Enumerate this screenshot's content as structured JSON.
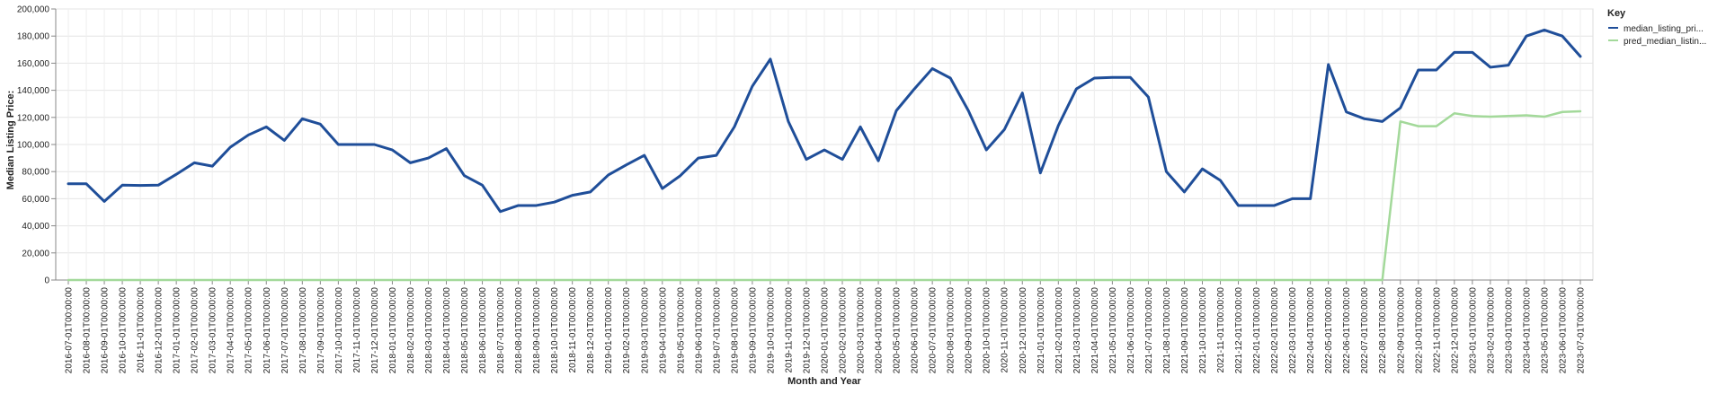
{
  "chart_data": {
    "type": "line",
    "xlabel": "Month and Year",
    "ylabel": "Median Listing Price:",
    "ylim": [
      0,
      200000
    ],
    "yticks": [
      "0",
      "20,000",
      "40,000",
      "60,000",
      "80,000",
      "100,000",
      "120,000",
      "140,000",
      "160,000",
      "180,000",
      "200,000"
    ],
    "grid": true,
    "legend": {
      "title": "Key",
      "position": "top-right"
    },
    "x": [
      "2016-07-01T00:00:00",
      "2016-08-01T00:00:00",
      "2016-09-01T00:00:00",
      "2016-10-01T00:00:00",
      "2016-11-01T00:00:00",
      "2016-12-01T00:00:00",
      "2017-01-01T00:00:00",
      "2017-02-01T00:00:00",
      "2017-03-01T00:00:00",
      "2017-04-01T00:00:00",
      "2017-05-01T00:00:00",
      "2017-06-01T00:00:00",
      "2017-07-01T00:00:00",
      "2017-08-01T00:00:00",
      "2017-09-01T00:00:00",
      "2017-10-01T00:00:00",
      "2017-11-01T00:00:00",
      "2017-12-01T00:00:00",
      "2018-01-01T00:00:00",
      "2018-02-01T00:00:00",
      "2018-03-01T00:00:00",
      "2018-04-01T00:00:00",
      "2018-05-01T00:00:00",
      "2018-06-01T00:00:00",
      "2018-07-01T00:00:00",
      "2018-08-01T00:00:00",
      "2018-09-01T00:00:00",
      "2018-10-01T00:00:00",
      "2018-11-01T00:00:00",
      "2018-12-01T00:00:00",
      "2019-01-01T00:00:00",
      "2019-02-01T00:00:00",
      "2019-03-01T00:00:00",
      "2019-04-01T00:00:00",
      "2019-05-01T00:00:00",
      "2019-06-01T00:00:00",
      "2019-07-01T00:00:00",
      "2019-08-01T00:00:00",
      "2019-09-01T00:00:00",
      "2019-10-01T00:00:00",
      "2019-11-01T00:00:00",
      "2019-12-01T00:00:00",
      "2020-01-01T00:00:00",
      "2020-02-01T00:00:00",
      "2020-03-01T00:00:00",
      "2020-04-01T00:00:00",
      "2020-05-01T00:00:00",
      "2020-06-01T00:00:00",
      "2020-07-01T00:00:00",
      "2020-08-01T00:00:00",
      "2020-09-01T00:00:00",
      "2020-10-01T00:00:00",
      "2020-11-01T00:00:00",
      "2020-12-01T00:00:00",
      "2021-01-01T00:00:00",
      "2021-02-01T00:00:00",
      "2021-03-01T00:00:00",
      "2021-04-01T00:00:00",
      "2021-05-01T00:00:00",
      "2021-06-01T00:00:00",
      "2021-07-01T00:00:00",
      "2021-08-01T00:00:00",
      "2021-09-01T00:00:00",
      "2021-10-01T00:00:00",
      "2021-11-01T00:00:00",
      "2021-12-01T00:00:00",
      "2022-01-01T00:00:00",
      "2022-02-01T00:00:00",
      "2022-03-01T00:00:00",
      "2022-04-01T00:00:00",
      "2022-05-01T00:00:00",
      "2022-06-01T00:00:00",
      "2022-07-01T00:00:00",
      "2022-08-01T00:00:00",
      "2022-09-01T00:00:00",
      "2022-10-01T00:00:00",
      "2022-11-01T00:00:00",
      "2022-12-01T00:00:00",
      "2023-01-01T00:00:00",
      "2023-02-01T00:00:00",
      "2023-03-01T00:00:00",
      "2023-04-01T00:00:00",
      "2023-05-01T00:00:00",
      "2023-06-01T00:00:00",
      "2023-07-01T00:00:00"
    ],
    "series": [
      {
        "name": "median_listing_pri...",
        "color": "#1f4e99",
        "values": [
          71000,
          71000,
          58000,
          70000,
          69800,
          70000,
          78000,
          86500,
          84000,
          98000,
          107000,
          113000,
          103000,
          119000,
          115000,
          100000,
          100000,
          100000,
          96000,
          86500,
          90000,
          97000,
          77000,
          70000,
          50500,
          55000,
          55000,
          57500,
          62500,
          65000,
          77500,
          85000,
          92000,
          67500,
          77000,
          90000,
          92000,
          113000,
          143000,
          163000,
          117000,
          89000,
          96000,
          89000,
          113000,
          88000,
          125000,
          141000,
          156000,
          149000,
          125000,
          96000,
          111000,
          138000,
          79000,
          114000,
          141000,
          149000,
          149500,
          149500,
          135000,
          80000,
          65000,
          82000,
          73500,
          55000,
          55000,
          55000,
          60000,
          60000,
          159000,
          124000,
          119000,
          117000,
          127000,
          155000,
          155000,
          168000,
          168000,
          157000,
          158500,
          180000,
          184500,
          180000,
          165000
        ]
      },
      {
        "name": "pred_median_listin...",
        "color": "#a3d99a",
        "values": [
          0,
          0,
          0,
          0,
          0,
          0,
          0,
          0,
          0,
          0,
          0,
          0,
          0,
          0,
          0,
          0,
          0,
          0,
          0,
          0,
          0,
          0,
          0,
          0,
          0,
          0,
          0,
          0,
          0,
          0,
          0,
          0,
          0,
          0,
          0,
          0,
          0,
          0,
          0,
          0,
          0,
          0,
          0,
          0,
          0,
          0,
          0,
          0,
          0,
          0,
          0,
          0,
          0,
          0,
          0,
          0,
          0,
          0,
          0,
          0,
          0,
          0,
          0,
          0,
          0,
          0,
          0,
          0,
          0,
          0,
          0,
          0,
          0,
          0,
          117000,
          113500,
          113500,
          123000,
          121000,
          120500,
          121000,
          121500,
          120500,
          124000,
          124500
        ]
      }
    ]
  }
}
